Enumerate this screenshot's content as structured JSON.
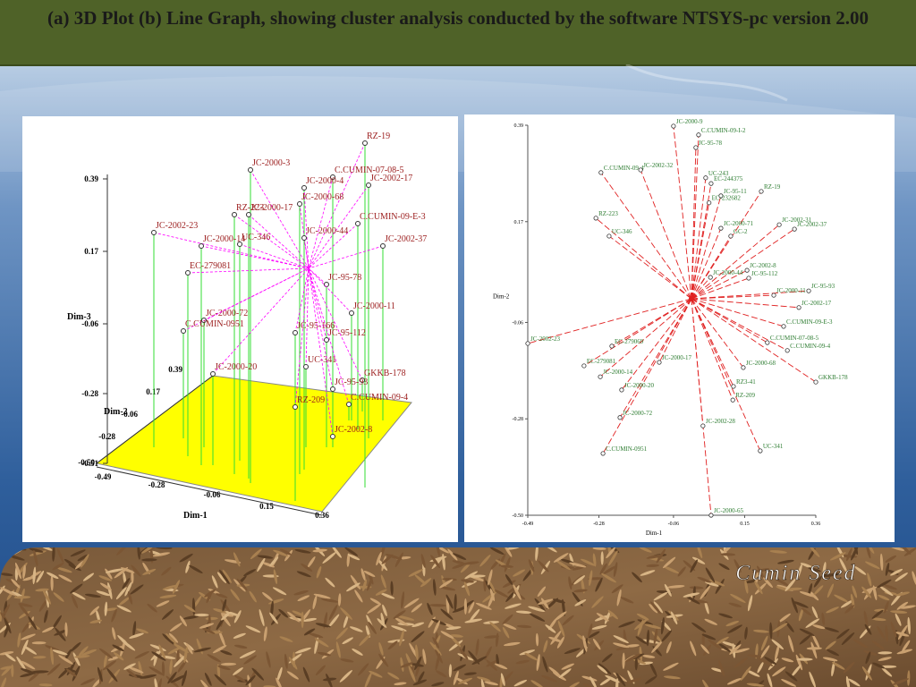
{
  "header": {
    "title": "(a) 3D Plot (b) Line Graph, showing cluster analysis conducted by the software NTSYS-pc version 2.00"
  },
  "plot_a": {
    "axis_labels": {
      "dim_3": "Dim-3",
      "dim_2": "Dim-2",
      "dim_1": "Dim-1"
    },
    "dim3_ticks": [
      "0.39",
      "0.17",
      "-0.06",
      "-0.28",
      "-0.51"
    ],
    "dim2_ticks": [
      "0.39",
      "0.17",
      "-0.06",
      "-0.28",
      "-0.50"
    ],
    "dim1_ticks": [
      "-0.49",
      "-0.28",
      "-0.06",
      "0.15",
      "0.36"
    ],
    "points": [
      "RZ-19",
      "JC-2000-3",
      "C.CUMIN-07-08-5",
      "JC-2000-4",
      "JC-2002-17",
      "JC-2000-68",
      "RZ-223",
      "JC-2000-17",
      "JC-2002-23",
      "C.CUMIN-09-E-3",
      "JC-2000-44",
      "JC-2002-37",
      "JC-2000-14",
      "UC-346",
      "EC-279081",
      "JC-95-78",
      "JC-2000-11",
      "JC-2000-72",
      "C.CUMIN-0951",
      "JC-95-166",
      "JC-95-112",
      "UC-341",
      "GKKB-178",
      "JC-2000-20",
      "JC-95-93",
      "RZ-209",
      "C.CUMIN-09-4",
      "JC-2002-8"
    ]
  },
  "plot_b": {
    "x_label": "Dim-1",
    "y_label": "Dim-2",
    "xlim": [
      -0.49,
      0.36
    ],
    "ylim": [
      -0.5,
      0.39
    ],
    "xticks": [
      -0.49,
      -0.28,
      -0.06,
      0.15,
      0.36
    ],
    "yticks": [
      0.39,
      0.17,
      -0.06,
      -0.28,
      {
        "value": -0.5,
        "label": "-0.50"
      }
    ],
    "center": {
      "x": -0.007,
      "y": -0.006
    },
    "points": [
      {
        "label": "JC-2000-9",
        "x": -0.06,
        "y": 0.388
      },
      {
        "label": "C.CUMIN-09-I-2",
        "x": 0.014,
        "y": 0.368
      },
      {
        "label": "JC-95-78",
        "x": 0.006,
        "y": 0.339
      },
      {
        "label": "C.CUMIN-09-4",
        "x": -0.274,
        "y": 0.282
      },
      {
        "label": "JC-2002-32",
        "x": -0.157,
        "y": 0.288
      },
      {
        "label": "UC-243",
        "x": 0.035,
        "y": 0.27
      },
      {
        "label": "EC-244375",
        "x": 0.051,
        "y": 0.257
      },
      {
        "label": "JC-95-11",
        "x": 0.08,
        "y": 0.229
      },
      {
        "label": "RZ-19",
        "x": 0.199,
        "y": 0.239
      },
      {
        "label": "EC-232682",
        "x": 0.045,
        "y": 0.213
      },
      {
        "label": "RZ-223",
        "x": -0.289,
        "y": 0.178
      },
      {
        "label": "JC-2002-31",
        "x": 0.252,
        "y": 0.163
      },
      {
        "label": "JC-2002-37",
        "x": 0.297,
        "y": 0.153
      },
      {
        "label": "UC-346",
        "x": -0.25,
        "y": 0.137
      },
      {
        "label": "JC-2000-71",
        "x": 0.08,
        "y": 0.155
      },
      {
        "label": "GC-2",
        "x": 0.109,
        "y": 0.137
      },
      {
        "label": "JC-2002-8",
        "x": 0.157,
        "y": 0.059
      },
      {
        "label": "JC-95-112",
        "x": 0.162,
        "y": 0.041
      },
      {
        "label": "JC-2000-44",
        "x": 0.049,
        "y": 0.043
      },
      {
        "label": "JC-95-93",
        "x": 0.339,
        "y": 0.012
      },
      {
        "label": "JC-2000-11",
        "x": 0.236,
        "y": 0.002
      },
      {
        "label": "JC-2002-17",
        "x": 0.31,
        "y": -0.026
      },
      {
        "label": "C.CUMIN-09-E-3",
        "x": 0.265,
        "y": -0.069
      },
      {
        "label": "C.CUMIN-07-08-5",
        "x": 0.217,
        "y": -0.106
      },
      {
        "label": "C.CUMIN-09-4",
        "x": 0.276,
        "y": -0.124
      },
      {
        "label": "GKKB-178",
        "x": 0.36,
        "y": -0.196
      },
      {
        "label": "JC-2000-68",
        "x": 0.146,
        "y": -0.163
      },
      {
        "label": "RZ3-41",
        "x": 0.117,
        "y": -0.206
      },
      {
        "label": "RZ-209",
        "x": 0.115,
        "y": -0.237
      },
      {
        "label": "JC-2002-28",
        "x": 0.027,
        "y": -0.296
      },
      {
        "label": "UC-341",
        "x": 0.196,
        "y": -0.353
      },
      {
        "label": "JC-2000-65",
        "x": 0.051,
        "y": -0.5
      },
      {
        "label": "JC-2002-23",
        "x": -0.49,
        "y": -0.108
      },
      {
        "label": "EC-279069",
        "x": -0.242,
        "y": -0.114
      },
      {
        "label": "EC-279081",
        "x": -0.324,
        "y": -0.159
      },
      {
        "label": "JC-2000-14",
        "x": -0.276,
        "y": -0.184
      },
      {
        "label": "JC-2000-17",
        "x": -0.102,
        "y": -0.151
      },
      {
        "label": "JC-2000-20",
        "x": -0.213,
        "y": -0.214
      },
      {
        "label": "JC-2000-72",
        "x": -0.218,
        "y": -0.277
      },
      {
        "label": "C.CUMIN-0951",
        "x": -0.268,
        "y": -0.359
      }
    ]
  },
  "banner": {
    "caption": "Cumin Seed"
  }
}
